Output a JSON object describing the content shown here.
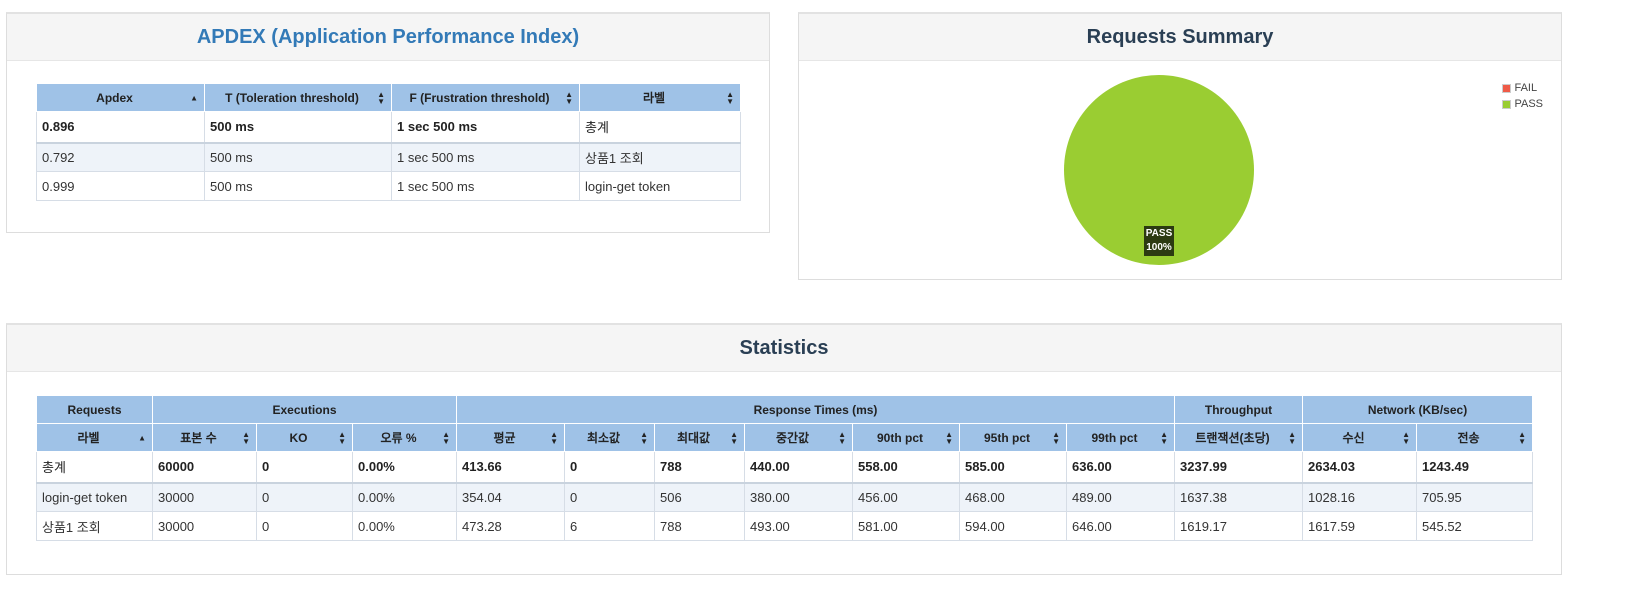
{
  "apdex": {
    "title": "APDEX (Application Performance Index)",
    "headers": [
      "Apdex",
      "T (Toleration threshold)",
      "F (Frustration threshold)",
      "라벨"
    ],
    "rows": [
      [
        "0.896",
        "500 ms",
        "1 sec 500 ms",
        "총계"
      ],
      [
        "0.792",
        "500 ms",
        "1 sec 500 ms",
        "상품1 조회"
      ],
      [
        "0.999",
        "500 ms",
        "1 sec 500 ms",
        "login-get token"
      ]
    ]
  },
  "summary": {
    "title": "Requests Summary",
    "legend": [
      {
        "label": "FAIL",
        "color": "#ef5a47"
      },
      {
        "label": "PASS",
        "color": "#9acd32"
      }
    ],
    "pie_label_name": "PASS",
    "pie_label_value": "100%"
  },
  "chart_data": {
    "type": "pie",
    "title": "Requests Summary",
    "categories": [
      "FAIL",
      "PASS"
    ],
    "values": [
      0,
      100
    ],
    "colors": [
      "#ef5a47",
      "#9acd32"
    ],
    "legend_position": "top-right"
  },
  "statistics": {
    "title": "Statistics",
    "group_headers": [
      "Requests",
      "Executions",
      "Response Times (ms)",
      "Throughput",
      "Network (KB/sec)"
    ],
    "headers": [
      "라벨",
      "표본 수",
      "KO",
      "오류 %",
      "평균",
      "최소값",
      "최대값",
      "중간값",
      "90th pct",
      "95th pct",
      "99th pct",
      "트랜잭션(초당)",
      "수신",
      "전송"
    ],
    "rows": [
      [
        "총계",
        "60000",
        "0",
        "0.00%",
        "413.66",
        "0",
        "788",
        "440.00",
        "558.00",
        "585.00",
        "636.00",
        "3237.99",
        "2634.03",
        "1243.49"
      ],
      [
        "login-get token",
        "30000",
        "0",
        "0.00%",
        "354.04",
        "0",
        "506",
        "380.00",
        "456.00",
        "468.00",
        "489.00",
        "1637.38",
        "1028.16",
        "705.95"
      ],
      [
        "상품1 조회",
        "30000",
        "0",
        "0.00%",
        "473.28",
        "6",
        "788",
        "493.00",
        "581.00",
        "594.00",
        "646.00",
        "1619.17",
        "1617.59",
        "545.52"
      ]
    ]
  }
}
